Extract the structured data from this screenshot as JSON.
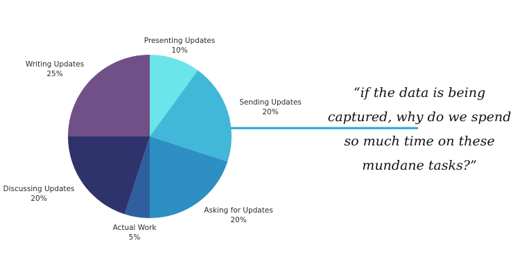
{
  "chart_data": {
    "type": "pie",
    "title": "",
    "slices": [
      {
        "name": "Presenting Updates",
        "value": 10,
        "pct_label": "10%",
        "color": "#6CE5EA"
      },
      {
        "name": "Sending Updates",
        "value": 20,
        "pct_label": "20%",
        "color": "#42B8D8"
      },
      {
        "name": "Asking for Updates",
        "value": 20,
        "pct_label": "20%",
        "color": "#2D8FC4"
      },
      {
        "name": "Actual Work",
        "value": 5,
        "pct_label": "5%",
        "color": "#2F5F9E"
      },
      {
        "name": "Discussing Updates",
        "value": 20,
        "pct_label": "20%",
        "color": "#2F336B"
      },
      {
        "name": "Writing Updates",
        "value": 25,
        "pct_label": "25%",
        "color": "#714F87"
      }
    ]
  },
  "quote": {
    "lines": [
      "“if the data is being",
      "captured, why do we spend",
      "so much time on these",
      "mundane tasks?”"
    ]
  },
  "connector_color": "#22A7D8"
}
